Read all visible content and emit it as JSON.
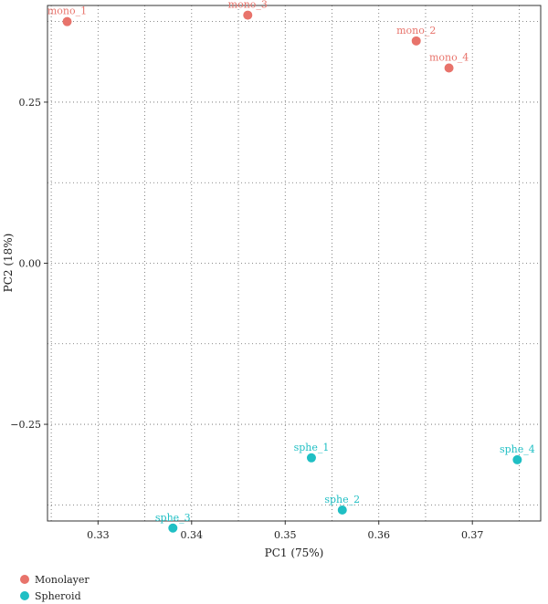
{
  "chart_data": {
    "type": "scatter",
    "xlabel": "PC1 (75%)",
    "ylabel": "PC2 (18%)",
    "xlim": [
      0.3246,
      0.3773
    ],
    "ylim": [
      -0.4,
      0.4
    ],
    "x_ticks": [
      0.33,
      0.34,
      0.35,
      0.36,
      0.37
    ],
    "x_tick_labels": [
      "0.33",
      "0.34",
      "0.35",
      "0.36",
      "0.37"
    ],
    "y_ticks": [
      -0.25,
      0.0,
      0.25
    ],
    "y_tick_labels": [
      "−0.25",
      "0.00",
      "0.25"
    ],
    "grid": true,
    "legend_position": "bottom-left",
    "series": [
      {
        "name": "Monolayer",
        "color": "#E8736B",
        "points": [
          {
            "label": "mono_1",
            "x": 0.3267,
            "y": 0.375
          },
          {
            "label": "mono_3",
            "x": 0.346,
            "y": 0.385
          },
          {
            "label": "mono_2",
            "x": 0.364,
            "y": 0.345
          },
          {
            "label": "mono_4",
            "x": 0.3675,
            "y": 0.303
          }
        ]
      },
      {
        "name": "Spheroid",
        "color": "#1FBFC4",
        "points": [
          {
            "label": "sphe_1",
            "x": 0.3528,
            "y": -0.302
          },
          {
            "label": "sphe_2",
            "x": 0.3561,
            "y": -0.383
          },
          {
            "label": "sphe_3",
            "x": 0.338,
            "y": -0.411
          },
          {
            "label": "sphe_4",
            "x": 0.3748,
            "y": -0.305
          }
        ]
      }
    ]
  }
}
